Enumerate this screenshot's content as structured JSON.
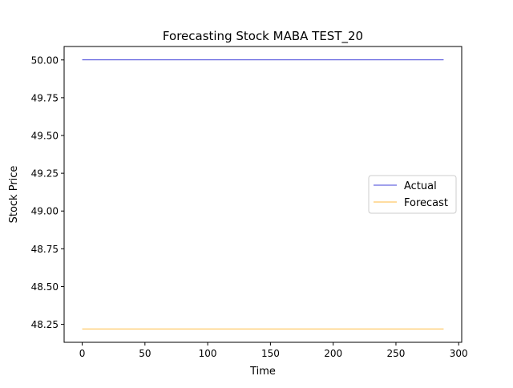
{
  "chart_data": {
    "type": "line",
    "title": "Forecasting Stock MABA TEST_20",
    "xlabel": "Time",
    "ylabel": "Stock Price",
    "xlim": [
      -14.4,
      302.4
    ],
    "ylim": [
      48.131,
      50.089
    ],
    "x_ticks": [
      0,
      50,
      100,
      150,
      200,
      250,
      300
    ],
    "x_tick_labels": [
      "0",
      "50",
      "100",
      "150",
      "200",
      "250",
      "300"
    ],
    "y_ticks": [
      48.25,
      48.5,
      48.75,
      49.0,
      49.25,
      49.5,
      49.75,
      50.0
    ],
    "y_tick_labels": [
      "48.25",
      "48.50",
      "48.75",
      "49.00",
      "49.25",
      "49.50",
      "49.75",
      "50.00"
    ],
    "grid": false,
    "legend_position": "center-right",
    "series": [
      {
        "name": "Actual",
        "color": "#0000cc",
        "x": [
          0,
          288
        ],
        "y": [
          50.0,
          50.0
        ]
      },
      {
        "name": "Forecast",
        "color": "#ffa500",
        "x": [
          0,
          288
        ],
        "y": [
          48.22,
          48.22
        ]
      }
    ]
  }
}
